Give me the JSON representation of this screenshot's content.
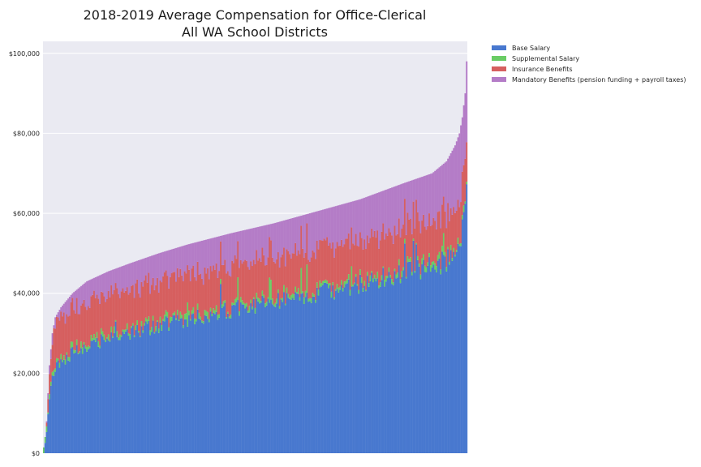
{
  "chart_data": {
    "type": "bar",
    "stacked": true,
    "title": [
      "2018-2019 Average Compensation for Office-Clerical",
      "All WA School Districts"
    ],
    "xlabel": "",
    "ylabel": "",
    "ylim": [
      0,
      103000
    ],
    "yticks": [
      0,
      20000,
      40000,
      60000,
      80000,
      100000
    ],
    "ytick_labels": [
      "$0",
      "$20,000",
      "$40,000",
      "$60,000",
      "$80,000",
      "$100,000"
    ],
    "grid": true,
    "legend_position": "outside-top-right",
    "n_districts": 295,
    "sorted_by": "total_ascending",
    "series": [
      {
        "name": "Base Salary",
        "color": "#4878cf"
      },
      {
        "name": "Supplemental Salary",
        "color": "#6acc65"
      },
      {
        "name": "Insurance Benefits",
        "color": "#d65f5f"
      },
      {
        "name": "Mandatory Benefits (pension funding + payroll taxes)",
        "color": "#b47cc7"
      }
    ],
    "total_profile": [
      [
        0,
        0
      ],
      [
        2,
        8000
      ],
      [
        4,
        22000
      ],
      [
        6,
        30000
      ],
      [
        8,
        34000
      ],
      [
        12,
        36500
      ],
      [
        20,
        40000
      ],
      [
        30,
        43000
      ],
      [
        45,
        45500
      ],
      [
        60,
        47500
      ],
      [
        80,
        50000
      ],
      [
        100,
        52200
      ],
      [
        130,
        55000
      ],
      [
        160,
        57500
      ],
      [
        190,
        60500
      ],
      [
        220,
        63500
      ],
      [
        250,
        67500
      ],
      [
        270,
        70000
      ],
      [
        280,
        73000
      ],
      [
        286,
        77000
      ],
      [
        289,
        80000
      ],
      [
        291,
        84000
      ],
      [
        293,
        90000
      ],
      [
        294,
        98000
      ]
    ],
    "base_share_profile": [
      [
        0,
        0.62
      ],
      [
        120,
        0.65
      ],
      [
        240,
        0.67
      ],
      [
        294,
        0.66
      ]
    ],
    "supplemental_mean": 900,
    "insurance_range": [
      9000,
      11000
    ]
  }
}
